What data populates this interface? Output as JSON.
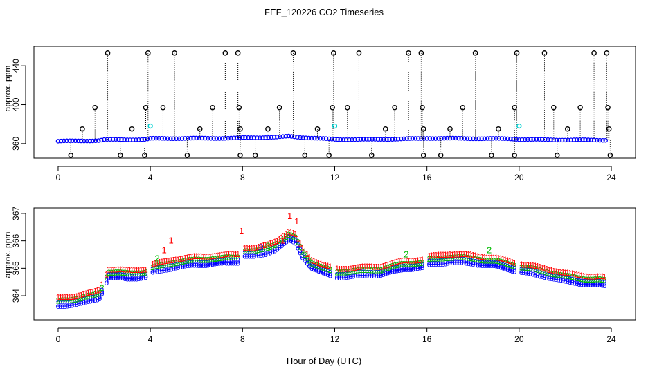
{
  "figure": {
    "title": "FEF_120226  CO2 Timeseries",
    "xlabel": "Hour of Day (UTC)"
  },
  "chart_data": [
    {
      "type": "scatter",
      "title": "FEF_120226  CO2 Timeseries",
      "ylabel": "approx. ppm",
      "xlim": [
        -1.05,
        25.05
      ],
      "ylim": [
        345,
        460
      ],
      "xticks": [
        0,
        4,
        8,
        12,
        16,
        20,
        24
      ],
      "yticks": [
        360,
        400,
        440
      ],
      "baseline": [
        [
          0.0,
          362.5
        ],
        [
          1.0,
          362.8
        ],
        [
          1.8,
          363.2
        ],
        [
          2.0,
          364.0
        ],
        [
          3.8,
          364.2
        ],
        [
          4.0,
          365.2
        ],
        [
          7.8,
          365.6
        ],
        [
          8.0,
          366.0
        ],
        [
          9.5,
          366.5
        ],
        [
          10.0,
          367.5
        ],
        [
          10.5,
          366.5
        ],
        [
          11.5,
          365.0
        ],
        [
          12.0,
          364.3
        ],
        [
          13.5,
          364.2
        ],
        [
          15.0,
          364.8
        ],
        [
          15.8,
          365.2
        ],
        [
          16.0,
          365.5
        ],
        [
          19.5,
          365.0
        ],
        [
          19.8,
          364.8
        ],
        [
          20.0,
          364.3
        ],
        [
          22.0,
          363.8
        ],
        [
          23.8,
          363.6
        ]
      ],
      "spikes_high": [
        2.15,
        3.9,
        5.05,
        7.25,
        7.8,
        10.2,
        11.95,
        13.05,
        15.2,
        15.75,
        18.1,
        19.9,
        21.1,
        23.25,
        23.8
      ],
      "spikes_mid": [
        1.6,
        3.8,
        4.55,
        6.7,
        7.85,
        9.6,
        11.9,
        12.55,
        14.6,
        15.8,
        17.55,
        19.8,
        21.5,
        22.65,
        23.85
      ],
      "spikes_low": [
        1.05,
        3.2,
        6.15,
        7.9,
        9.1,
        11.25,
        14.2,
        15.85,
        17.0,
        19.1,
        22.1,
        23.9
      ],
      "drops": [
        0.55,
        2.7,
        3.75,
        5.6,
        7.9,
        8.55,
        10.7,
        11.75,
        13.6,
        15.85,
        16.6,
        18.8,
        19.8,
        21.65,
        23.95
      ],
      "spike_levels": {
        "high": 453,
        "mid": 397,
        "low": 375,
        "drop": 348
      },
      "cyan_points": [
        [
          4.0,
          378
        ],
        [
          12.0,
          378
        ],
        [
          20.0,
          378
        ]
      ],
      "series_colors": {
        "points": "#000000",
        "baseline": "#0000ff",
        "cyan": "#00d0d0",
        "green": "#00aa00"
      }
    },
    {
      "type": "scatter",
      "ylabel": "approx. ppm",
      "xlim": [
        -1.05,
        25.05
      ],
      "ylim": [
        363.12,
        367.2
      ],
      "xticks": [
        0,
        4,
        8,
        12,
        16,
        20,
        24
      ],
      "yticks": [
        364,
        365,
        366,
        367
      ],
      "series": [
        {
          "name": "1",
          "color": "#ff0000",
          "offset": 0.22
        },
        {
          "name": "2",
          "color": "#00bb00",
          "offset": 0.1
        },
        {
          "name": "3",
          "color": "#0000ff",
          "offset": 0.0
        },
        {
          "name": "o",
          "color": "#0000ff",
          "offset": -0.08
        }
      ],
      "baseline": [
        [
          0.0,
          363.7
        ],
        [
          0.5,
          363.75
        ],
        [
          1.0,
          363.8
        ],
        [
          1.5,
          363.9
        ],
        [
          1.8,
          364.0
        ],
        [
          2.0,
          364.4
        ],
        [
          2.2,
          364.75
        ],
        [
          3.0,
          364.7
        ],
        [
          3.8,
          364.75
        ],
        [
          4.0,
          364.9
        ],
        [
          4.5,
          365.0
        ],
        [
          5.0,
          365.1
        ],
        [
          6.0,
          365.2
        ],
        [
          7.0,
          365.25
        ],
        [
          7.8,
          365.3
        ],
        [
          8.0,
          365.55
        ],
        [
          8.5,
          365.5
        ],
        [
          9.0,
          365.6
        ],
        [
          9.5,
          365.8
        ],
        [
          10.0,
          366.1
        ],
        [
          10.3,
          366.0
        ],
        [
          10.6,
          365.5
        ],
        [
          11.0,
          365.1
        ],
        [
          11.5,
          364.9
        ],
        [
          12.0,
          364.75
        ],
        [
          13.0,
          364.8
        ],
        [
          14.0,
          364.85
        ],
        [
          15.0,
          365.05
        ],
        [
          15.8,
          365.1
        ],
        [
          16.0,
          365.2
        ],
        [
          17.0,
          365.3
        ],
        [
          18.0,
          365.25
        ],
        [
          19.0,
          365.15
        ],
        [
          19.8,
          365.0
        ],
        [
          20.0,
          364.95
        ],
        [
          21.0,
          364.8
        ],
        [
          22.0,
          364.6
        ],
        [
          23.0,
          364.5
        ],
        [
          23.7,
          364.45
        ]
      ],
      "outliers": [
        [
          4.9,
          366.0,
          "1"
        ],
        [
          4.6,
          365.65,
          "1"
        ],
        [
          7.95,
          366.35,
          "1"
        ],
        [
          9.75,
          366.0,
          "1"
        ],
        [
          10.05,
          366.9,
          "1"
        ],
        [
          10.35,
          366.7,
          "1"
        ],
        [
          4.3,
          365.35,
          "2"
        ],
        [
          9.1,
          365.8,
          "2"
        ],
        [
          15.1,
          365.5,
          "2"
        ],
        [
          18.7,
          365.65,
          "2"
        ],
        [
          8.8,
          365.75,
          "3"
        ]
      ],
      "xlabel": "Hour of Day (UTC)"
    }
  ]
}
